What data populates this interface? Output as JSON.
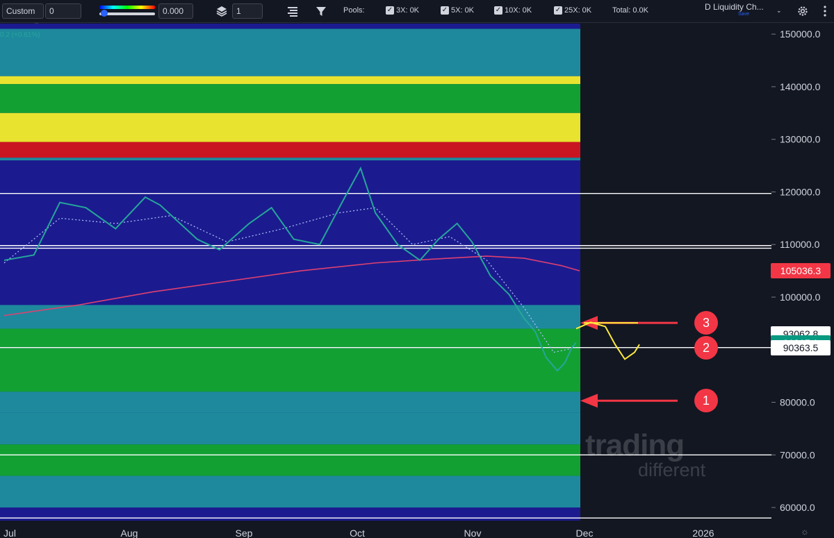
{
  "toolbar": {
    "preset": "Custom",
    "preset_value": "0",
    "gradient_value": "0.000",
    "layers_value": "1",
    "pools_label": "Pools:",
    "pools": [
      {
        "label": "3X: 0K",
        "checked": true
      },
      {
        "label": "5X: 0K",
        "checked": true
      },
      {
        "label": "10X: 0K",
        "checked": true
      },
      {
        "label": "25X: 0K",
        "checked": true
      }
    ],
    "total_label": "Total: 0.0K",
    "indicator_title": "D Liquidity Ch...",
    "save_label": "Save",
    "icons": [
      "chevron-down-icon",
      "color-gradient-slider",
      "layers-icon",
      "align-icon",
      "filter-icon",
      "settings-icon",
      "more-icon"
    ]
  },
  "legend": {
    "change_text": "0.2 (+0.61%)"
  },
  "chart_data": {
    "type": "heatmap",
    "overlay_types": [
      "candlestick",
      "line"
    ],
    "x_axis": {
      "labels": [
        "Jul",
        "Aug",
        "Sep",
        "Oct",
        "Nov",
        "Dec",
        "2026"
      ]
    },
    "y_axis": {
      "range": [
        57500,
        152000
      ],
      "ticks": [
        60000,
        70000,
        80000,
        90000,
        100000,
        110000,
        120000,
        130000,
        140000,
        150000
      ],
      "tick_labels": [
        "60000.0",
        "70000.0",
        "80000.0",
        "90000.0",
        "100000.0",
        "110000.0",
        "120000.0",
        "130000.0",
        "140000.0",
        "150000.0"
      ],
      "position": "right"
    },
    "horizontal_lines": [
      58000,
      70000,
      90400,
      109300,
      109800,
      119700
    ],
    "price_labels": [
      {
        "value": 105036.3,
        "text": "105036.3",
        "bg": "#f23645",
        "fg": "#ffffff"
      },
      {
        "value": 93062.8,
        "text": "93062.8",
        "bg": "#ffffff",
        "fg": "#131722"
      },
      {
        "value": 91317.1,
        "text": "91317.1",
        "bg": "#089981",
        "fg": "#ffffff"
      },
      {
        "value": 90363.5,
        "text": "90363.5",
        "bg": "#ffffff",
        "fg": "#131722"
      }
    ],
    "heatmap_bands": [
      {
        "from": 142000,
        "to": 151000,
        "level": "teal"
      },
      {
        "from": 140500,
        "to": 142000,
        "level": "yellow"
      },
      {
        "from": 135000,
        "to": 140500,
        "level": "green"
      },
      {
        "from": 129500,
        "to": 135000,
        "level": "yellow"
      },
      {
        "from": 126500,
        "to": 129500,
        "level": "red"
      },
      {
        "from": 126000,
        "to": 126500,
        "level": "teal"
      },
      {
        "from": 94000,
        "to": 98500,
        "level": "teal"
      },
      {
        "from": 90500,
        "to": 94000,
        "level": "green"
      },
      {
        "from": 82000,
        "to": 90300,
        "level": "green"
      },
      {
        "from": 78000,
        "to": 82000,
        "level": "teal"
      },
      {
        "from": 72000,
        "to": 78000,
        "level": "teal"
      },
      {
        "from": 66000,
        "to": 72000,
        "level": "green"
      },
      {
        "from": 60000,
        "to": 66000,
        "level": "teal"
      }
    ],
    "price_series": {
      "name": "",
      "points": [
        [
          0,
          107000
        ],
        [
          8,
          108000
        ],
        [
          15,
          118000
        ],
        [
          22,
          117000
        ],
        [
          30,
          113000
        ],
        [
          38,
          119000
        ],
        [
          42,
          117500
        ],
        [
          52,
          111000
        ],
        [
          58,
          109000
        ],
        [
          66,
          114000
        ],
        [
          72,
          117000
        ],
        [
          78,
          111000
        ],
        [
          85,
          110000
        ],
        [
          91,
          118000
        ],
        [
          96,
          124500
        ],
        [
          100,
          116000
        ],
        [
          106,
          110000
        ],
        [
          112,
          107000
        ],
        [
          117,
          111000
        ],
        [
          122,
          114000
        ],
        [
          126,
          110500
        ],
        [
          131,
          104000
        ],
        [
          136,
          100500
        ],
        [
          140,
          96000
        ],
        [
          143,
          93500
        ],
        [
          146,
          88500
        ],
        [
          149,
          86000
        ],
        [
          151,
          87500
        ],
        [
          153,
          90500
        ],
        [
          154,
          91300
        ]
      ]
    },
    "ma_fast": {
      "name": "",
      "points": [
        [
          0,
          106500
        ],
        [
          15,
          115000
        ],
        [
          30,
          114000
        ],
        [
          45,
          115500
        ],
        [
          60,
          110500
        ],
        [
          75,
          113000
        ],
        [
          90,
          116000
        ],
        [
          100,
          117000
        ],
        [
          110,
          110000
        ],
        [
          120,
          111500
        ],
        [
          130,
          107000
        ],
        [
          140,
          98000
        ],
        [
          148,
          89500
        ],
        [
          154,
          90400
        ]
      ]
    },
    "ma_slow": {
      "name": "",
      "points": [
        [
          0,
          96500
        ],
        [
          20,
          98500
        ],
        [
          40,
          101000
        ],
        [
          60,
          103000
        ],
        [
          80,
          105000
        ],
        [
          100,
          106500
        ],
        [
          115,
          107200
        ],
        [
          130,
          107800
        ],
        [
          140,
          107400
        ],
        [
          150,
          106000
        ],
        [
          155,
          105000
        ]
      ]
    },
    "annotations": [
      {
        "number": "1",
        "price": 80300
      },
      {
        "number": "2",
        "price": 90400
      },
      {
        "number": "3",
        "price": 95100
      }
    ],
    "projection": [
      [
        0,
        94000
      ],
      [
        3,
        95200
      ],
      [
        6,
        94400
      ],
      [
        8,
        91000
      ],
      [
        10,
        88200
      ],
      [
        12,
        89500
      ],
      [
        13,
        91000
      ]
    ],
    "watermark": {
      "line1": "trading",
      "line2": "different"
    }
  }
}
